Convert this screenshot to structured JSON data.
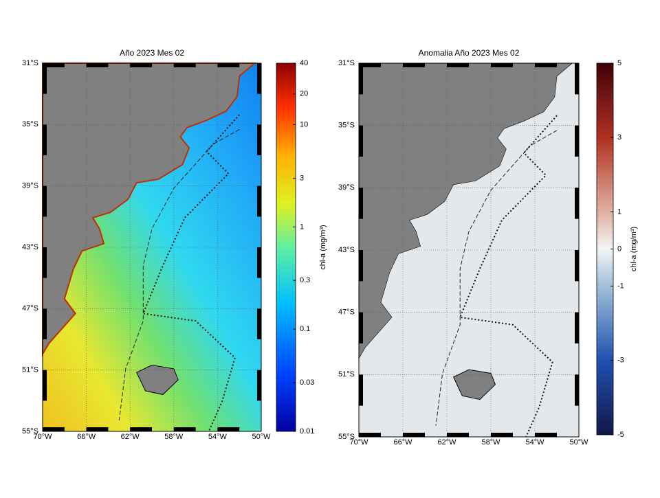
{
  "panels": [
    {
      "title": "Año 2023 Mes 02",
      "lat_labels": [
        "31°S",
        "35°S",
        "39°S",
        "43°S",
        "47°S",
        "51°S",
        "55°S"
      ],
      "lon_labels": [
        "70°W",
        "66°W",
        "62°W",
        "58°W",
        "54°W",
        "50°W"
      ],
      "colorbar": {
        "label": "chl-a (mg/m³)",
        "scale": "log",
        "lim": [
          0.01,
          40
        ],
        "ticks": [
          0.01,
          0.03,
          0.1,
          0.3,
          1,
          3,
          10,
          20,
          40
        ]
      }
    },
    {
      "title": "Anomalia Año 2023 Mes 02",
      "lat_labels": [
        "31°S",
        "35°S",
        "39°S",
        "43°S",
        "47°S",
        "51°S",
        "55°S"
      ],
      "lon_labels": [
        "70°W",
        "66°W",
        "62°W",
        "58°W",
        "54°W",
        "50°W"
      ],
      "colorbar": {
        "label": "chl-a (mg/m³)",
        "scale": "linear",
        "lim": [
          -5,
          5
        ],
        "ticks": [
          -5,
          -3,
          -1,
          0,
          1,
          3,
          5
        ]
      }
    }
  ]
}
